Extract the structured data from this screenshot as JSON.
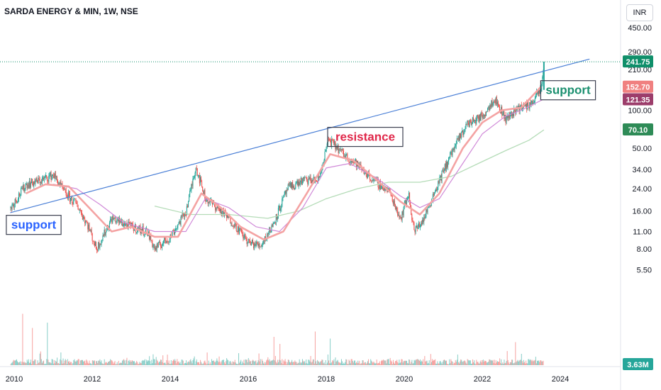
{
  "header": {
    "title": "SARDA ENERGY & MIN, 1W, NSE",
    "currency": "INR"
  },
  "colors": {
    "up": "#26a69a",
    "down": "#ef5350",
    "ma_fast": "#f4a3a3",
    "ma_mid": "#d08ad8",
    "ma_slow": "#b5dcb8",
    "trendline": "#4a7fd6",
    "last_price": "#0f8f6a",
    "tag_ma_fast": "#f08080",
    "tag_ma_mid": "#9c3d6b",
    "tag_ma_slow": "#2e8b57",
    "tag_volume": "#26a69a",
    "annotation_green": "#1a8f6f",
    "annotation_red": "#e0284a",
    "annotation_blue": "#2962ff"
  },
  "chart_data": {
    "type": "line",
    "title": "SARDA ENERGY & MIN, 1W, NSE",
    "xlabel": "",
    "ylabel": "",
    "y_scale": "log",
    "ylim": [
      3.6,
      560
    ],
    "xlim": [
      2009.9,
      2024.8
    ],
    "x_ticks": [
      "2010",
      "2012",
      "2014",
      "2016",
      "2018",
      "2020",
      "2022",
      "2024"
    ],
    "y_ticks": [
      "450.00",
      "290.00",
      "210.00",
      "100.00",
      "70.10",
      "50.00",
      "34.00",
      "24.00",
      "16.00",
      "11.00",
      "8.00",
      "5.50"
    ],
    "price_keypoints": {
      "x": [
        2009.9,
        2010.3,
        2010.7,
        2011.0,
        2011.3,
        2011.6,
        2011.9,
        2012.1,
        2012.5,
        2013.0,
        2013.4,
        2013.6,
        2014.0,
        2014.4,
        2014.65,
        2014.9,
        2015.2,
        2015.6,
        2016.0,
        2016.3,
        2016.6,
        2017.0,
        2017.4,
        2017.8,
        2018.05,
        2018.4,
        2018.8,
        2019.2,
        2019.6,
        2019.9,
        2020.1,
        2020.25,
        2020.5,
        2020.8,
        2021.2,
        2021.6,
        2022.0,
        2022.3,
        2022.6,
        2022.9,
        2023.2,
        2023.5,
        2023.58
      ],
      "y": [
        17,
        26,
        28,
        31,
        22,
        18,
        12,
        8,
        14,
        12,
        11,
        8,
        10,
        16,
        36,
        20,
        17,
        13,
        9,
        8.5,
        12,
        24,
        28,
        28,
        59,
        46,
        37,
        28,
        23,
        14,
        22,
        11,
        14,
        24,
        46,
        78,
        90,
        125,
        85,
        105,
        110,
        145,
        241.75
      ]
    },
    "series": [
      {
        "name": "SARDA ENERGY & MIN",
        "last": 241.75
      },
      {
        "name": "MA",
        "last": 152.7,
        "x": [
          2010.3,
          2010.8,
          2011.4,
          2012.0,
          2012.5,
          2013.0,
          2013.6,
          2014.2,
          2014.8,
          2015.3,
          2015.8,
          2016.4,
          2016.9,
          2017.5,
          2018.1,
          2018.7,
          2019.3,
          2019.9,
          2020.4,
          2020.9,
          2021.5,
          2022.0,
          2022.5,
          2023.0,
          2023.5
        ],
        "values": [
          22,
          26,
          25,
          16,
          11,
          12,
          10,
          10,
          22,
          17,
          12,
          9.5,
          11,
          22,
          45,
          40,
          28,
          19,
          15,
          22,
          50,
          80,
          100,
          105,
          152.7
        ]
      },
      {
        "name": "MA",
        "last": 121.35,
        "x": [
          2011.0,
          2011.6,
          2012.2,
          2012.8,
          2013.6,
          2014.4,
          2014.9,
          2015.5,
          2016.2,
          2016.8,
          2017.4,
          2018.0,
          2018.6,
          2019.3,
          2019.9,
          2020.4,
          2020.9,
          2021.5,
          2022.0,
          2022.6,
          2023.0,
          2023.55
        ],
        "values": [
          26,
          24,
          18,
          13,
          11,
          11,
          20,
          17,
          12,
          11,
          17,
          35,
          38,
          29,
          21,
          17,
          20,
          38,
          65,
          90,
          100,
          121.35
        ]
      },
      {
        "name": "MA",
        "last": 70.1,
        "x": [
          2013.6,
          2014.5,
          2015.5,
          2016.5,
          2017.3,
          2018.0,
          2018.8,
          2019.6,
          2020.4,
          2021.2,
          2021.9,
          2022.6,
          2023.2,
          2023.58
        ],
        "values": [
          17.5,
          15,
          15,
          14,
          16,
          20,
          24,
          27,
          27,
          30,
          38,
          48,
          58,
          70.1
        ]
      },
      {
        "name": "Volume",
        "last": "3.63M"
      }
    ],
    "trendline": {
      "x": [
        2009.9,
        2024.75
      ],
      "y": [
        15.5,
        254
      ]
    },
    "annotations": [
      {
        "text": "support",
        "x": 2010.5,
        "y": 12.5
      },
      {
        "text": "resistance",
        "x": 2019.0,
        "y": 62
      },
      {
        "text": "support",
        "x": 2024.2,
        "y": 145
      }
    ],
    "volume": {
      "max": 60,
      "spikes": [
        {
          "x": 2010.2,
          "v": 58
        },
        {
          "x": 2010.45,
          "v": 42
        },
        {
          "x": 2010.85,
          "v": 48
        },
        {
          "x": 2016.65,
          "v": 32
        },
        {
          "x": 2016.8,
          "v": 24
        },
        {
          "x": 2017.7,
          "v": 38
        },
        {
          "x": 2018.1,
          "v": 30
        },
        {
          "x": 2022.85,
          "v": 26
        }
      ]
    }
  },
  "tags": {
    "last_price": "241.75",
    "ma_fast": "152.70",
    "ma_mid": "121.35",
    "ma_slow": "70.10",
    "volume": "3.63M"
  }
}
